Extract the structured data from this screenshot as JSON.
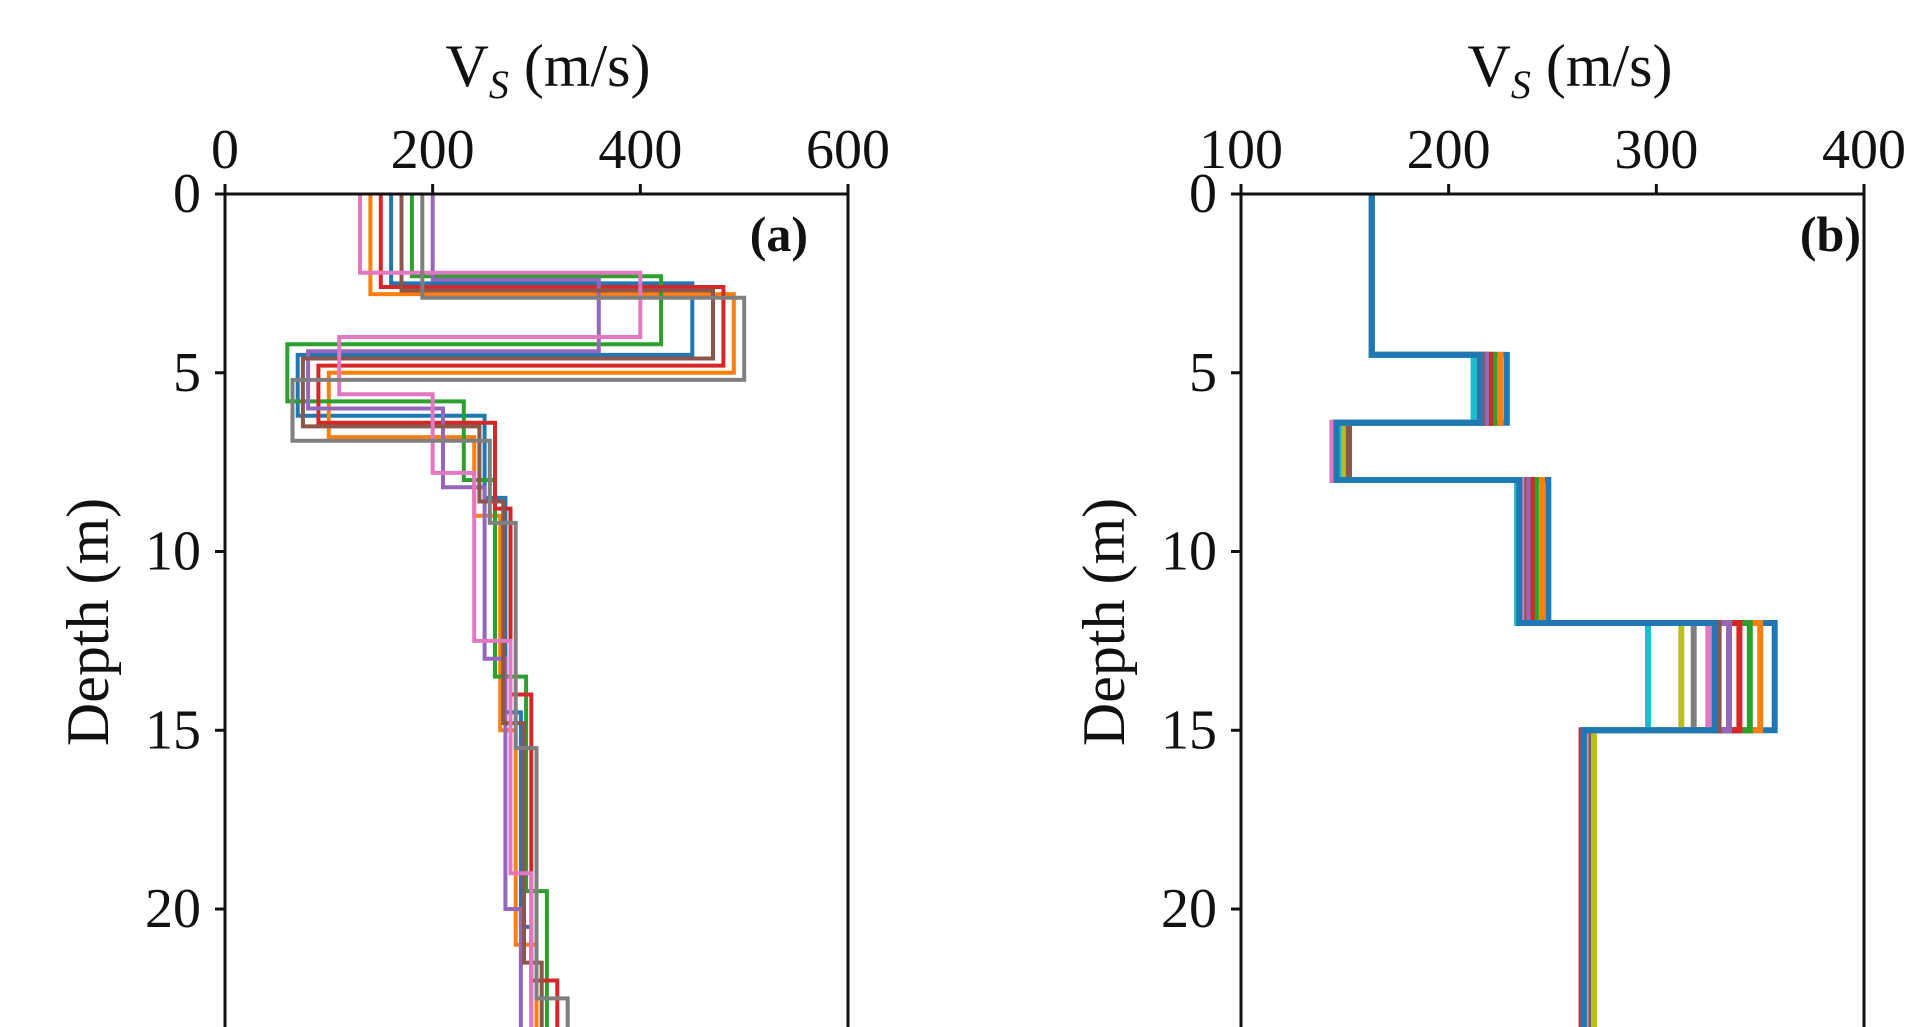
{
  "chart_data": [
    {
      "type": "line",
      "panel_label": "(a)",
      "xlabel_main": "V",
      "xlabel_sub": "S",
      "xlabel_unit": " (m/s)",
      "ylabel": "Depth (m)",
      "xlim": [
        0,
        600
      ],
      "ylim": [
        0,
        24
      ],
      "y_inverted": true,
      "x_axis_position": "top",
      "xticks": [
        "0",
        "200",
        "400",
        "600"
      ],
      "yticks": [
        "0",
        "5",
        "10",
        "15",
        "20"
      ],
      "grid": false,
      "legend": "none",
      "series_count": 60,
      "note_on_series": "ensemble of layered shear-wave velocity profiles",
      "series": [
        {
          "vs": [
            160,
            450,
            70,
            250,
            270,
            285,
            295
          ],
          "depth_bottom": [
            2.5,
            4.5,
            6.2,
            8.5,
            14.5,
            20.5,
            24
          ]
        },
        {
          "vs": [
            140,
            490,
            100,
            240,
            265,
            280,
            300
          ],
          "depth_bottom": [
            2.8,
            5.0,
            6.8,
            9.0,
            15.0,
            21.0,
            24
          ]
        },
        {
          "vs": [
            180,
            420,
            60,
            230,
            260,
            290,
            310
          ],
          "depth_bottom": [
            2.3,
            4.2,
            5.8,
            8.0,
            13.5,
            19.5,
            24
          ]
        },
        {
          "vs": [
            150,
            480,
            90,
            260,
            275,
            295,
            320
          ],
          "depth_bottom": [
            2.6,
            4.8,
            6.4,
            8.8,
            14.0,
            22.0,
            24
          ]
        },
        {
          "vs": [
            200,
            360,
            80,
            210,
            250,
            270,
            285
          ],
          "depth_bottom": [
            2.4,
            4.4,
            6.0,
            8.2,
            13.0,
            20.0,
            24
          ]
        },
        {
          "vs": [
            170,
            470,
            75,
            245,
            268,
            288,
            305
          ],
          "depth_bottom": [
            2.7,
            4.6,
            6.5,
            8.6,
            14.8,
            21.5,
            24
          ]
        },
        {
          "vs": [
            130,
            400,
            110,
            200,
            240,
            275,
            295
          ],
          "depth_bottom": [
            2.2,
            4.0,
            5.6,
            7.8,
            12.5,
            19.0,
            24
          ]
        },
        {
          "vs": [
            190,
            500,
            65,
            255,
            280,
            300,
            330
          ],
          "depth_bottom": [
            2.9,
            5.2,
            6.9,
            9.2,
            15.5,
            22.5,
            24
          ]
        }
      ]
    },
    {
      "type": "line",
      "panel_label": "(b)",
      "xlabel_main": "V",
      "xlabel_sub": "S",
      "xlabel_unit": " (m/s)",
      "ylabel": "Depth (m)",
      "xlim": [
        100,
        400
      ],
      "ylim": [
        0,
        24
      ],
      "y_inverted": true,
      "x_axis_position": "top",
      "xticks": [
        "100",
        "200",
        "300",
        "400"
      ],
      "yticks": [
        "0",
        "5",
        "10",
        "15",
        "20"
      ],
      "grid": false,
      "legend": "none",
      "layer_tops": [
        0,
        4.5,
        6.4,
        8.0,
        12.0,
        15.0
      ],
      "layer_bottom": 24,
      "series": [
        {
          "vs": [
            163,
            228,
            150,
            248,
            357,
            268
          ]
        },
        {
          "vs": [
            163,
            225,
            147,
            245,
            350,
            266
          ]
        },
        {
          "vs": [
            163,
            222,
            145,
            242,
            345,
            265
          ]
        },
        {
          "vs": [
            163,
            220,
            148,
            240,
            340,
            264
          ]
        },
        {
          "vs": [
            163,
            218,
            146,
            238,
            335,
            265
          ]
        },
        {
          "vs": [
            163,
            216,
            152,
            236,
            330,
            267
          ]
        },
        {
          "vs": [
            163,
            215,
            144,
            235,
            325,
            266
          ]
        },
        {
          "vs": [
            163,
            214,
            146,
            234,
            318,
            265
          ]
        },
        {
          "vs": [
            163,
            213,
            149,
            233,
            312,
            270
          ]
        },
        {
          "vs": [
            163,
            212,
            147,
            233,
            296,
            265
          ]
        },
        {
          "vs": [
            163,
            215,
            146,
            234,
            328,
            265
          ]
        }
      ]
    }
  ],
  "colors": {
    "series_palette": [
      "#1f77b4",
      "#ff7f0e",
      "#2ca02c",
      "#d62728",
      "#9467bd",
      "#8c564b",
      "#e377c2",
      "#7f7f7f",
      "#bcbd22",
      "#17becf"
    ],
    "axis": "#111111",
    "background": "#ffffff"
  }
}
